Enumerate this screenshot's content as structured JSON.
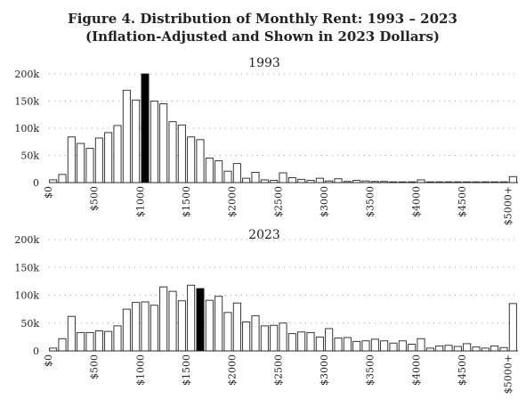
{
  "title_line1": "Figure 4. Distribution of Monthly Rent: 1993 – 2023",
  "title_line2": "(Inflation-Adjusted and Shown in 2023 Dollars)",
  "colors": {
    "bar_fill": "#ffffff",
    "bar_highlight": "#000000",
    "bar_stroke": "#222222"
  },
  "chart_data": [
    {
      "type": "bar",
      "title": "1993",
      "ylim": [
        0,
        200000
      ],
      "yticks": [
        0,
        50000,
        100000,
        150000,
        200000
      ],
      "ytick_labels": [
        "0",
        "50k",
        "100k",
        "150k",
        "200k"
      ],
      "xtick_labels": [
        "$0",
        "$500",
        "$1000",
        "$1500",
        "$2000",
        "$2500",
        "$3000",
        "$3500",
        "$4000",
        "$4500",
        "$5000+"
      ],
      "bin_width": 100,
      "highlight_bin": 10,
      "grid": true,
      "values": [
        5000,
        15000,
        84000,
        72000,
        63000,
        82000,
        92000,
        105000,
        170000,
        152000,
        200000,
        150000,
        145000,
        112000,
        106000,
        84000,
        79000,
        45000,
        40000,
        21000,
        35000,
        8000,
        19000,
        5000,
        4000,
        18000,
        9000,
        6000,
        4000,
        8000,
        3000,
        7000,
        2000,
        4000,
        3000,
        2000,
        2000,
        1000,
        1000,
        1000,
        5000,
        1000,
        1000,
        1000,
        1000,
        1000,
        1000,
        1000,
        1000,
        1000,
        11000
      ]
    },
    {
      "type": "bar",
      "title": "2023",
      "ylim": [
        0,
        200000
      ],
      "yticks": [
        0,
        50000,
        100000,
        150000,
        200000
      ],
      "ytick_labels": [
        "0",
        "50k",
        "100k",
        "150k",
        "200k"
      ],
      "xtick_labels": [
        "$0",
        "$500",
        "$1000",
        "$1500",
        "$2000",
        "$2500",
        "$3000",
        "$3500",
        "$4000",
        "$4500",
        "$5000+"
      ],
      "bin_width": 100,
      "highlight_bin": 16,
      "grid": true,
      "values": [
        5000,
        22000,
        62000,
        33000,
        33000,
        36000,
        35000,
        45000,
        75000,
        87000,
        88000,
        82000,
        115000,
        107000,
        90000,
        118000,
        112000,
        91000,
        98000,
        69000,
        86000,
        52000,
        63000,
        45000,
        46000,
        50000,
        31000,
        34000,
        33000,
        25000,
        40000,
        23000,
        24000,
        17000,
        18000,
        21000,
        18000,
        14000,
        18000,
        12000,
        22000,
        5000,
        9000,
        10000,
        8000,
        13000,
        7000,
        5000,
        9000,
        6000,
        85000
      ]
    }
  ]
}
